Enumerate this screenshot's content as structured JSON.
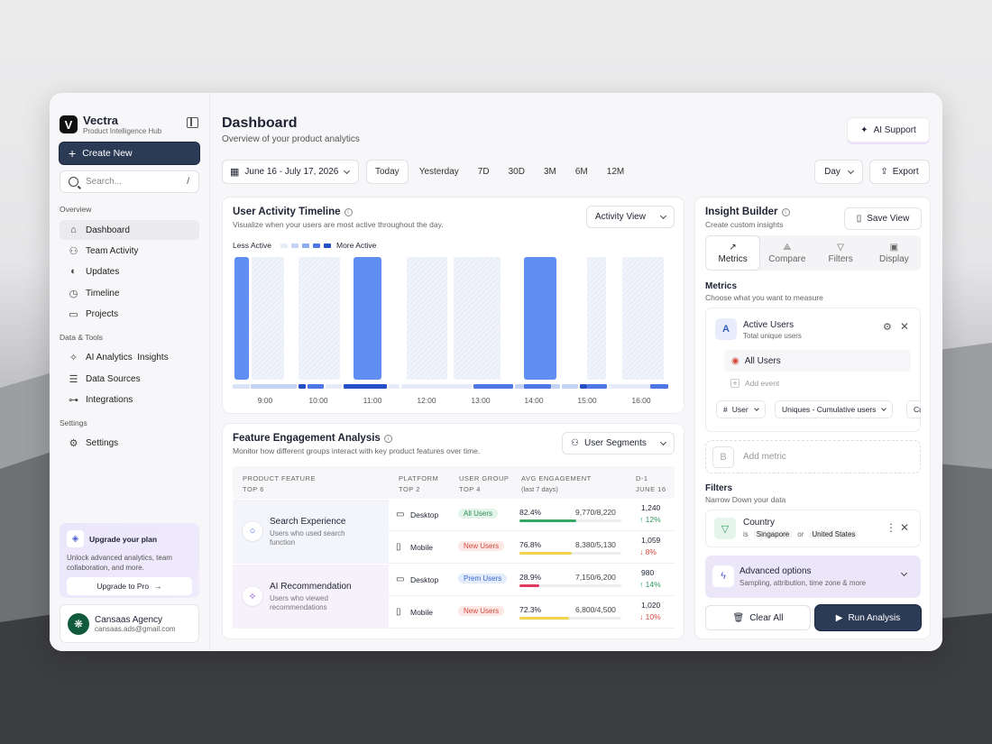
{
  "app": {
    "name": "Vectra",
    "subtitle": "Product Intelligence Hub"
  },
  "sidebar": {
    "create_label": "Create New",
    "search_placeholder": "Search...",
    "search_shortcut": "/",
    "section_overview": "Overview",
    "section_data": "Data & Tools",
    "section_settings": "Settings",
    "items": [
      {
        "label": "Dashboard"
      },
      {
        "label": "Team Activity"
      },
      {
        "label": "Updates"
      },
      {
        "label": "Timeline"
      },
      {
        "label": "Projects"
      },
      {
        "label": "AI Analytics  Insights"
      },
      {
        "label": "Data Sources"
      },
      {
        "label": "Integrations"
      },
      {
        "label": "Settings"
      }
    ],
    "upgrade": {
      "title": "Upgrade your plan",
      "desc": "Unlock advanced analytics, team collaboration, and more.",
      "button": "Upgrade to Pro"
    },
    "user": {
      "name": "Cansaas Agency",
      "email": "cansaas.ads@gmail.com",
      "initial": "❋"
    }
  },
  "header": {
    "title": "Dashboard",
    "subtitle": "Overview of your product analytics",
    "ai_support": "AI Support",
    "date_range": "June 16 - July 17, 2026",
    "ranges": [
      "Today",
      "Yesterday",
      "7D",
      "30D",
      "3M",
      "6M",
      "12M"
    ],
    "granularity": "Day",
    "export": "Export"
  },
  "activity": {
    "title": "User Activity Timeline",
    "subtitle": "Visualize when your users are most active throughout the day.",
    "view": "Activity View",
    "legend_less": "Less Active",
    "legend_more": "More Active",
    "legend_colors": [
      "#e6ebf8",
      "#c3d2f5",
      "#8fabf2",
      "#4f78e6",
      "#2650c8"
    ],
    "hours": [
      "9:00",
      "10:00",
      "11:00",
      "12:00",
      "13:00",
      "14:00",
      "15:00",
      "16:00"
    ],
    "bars": [
      {
        "level": "high"
      },
      {
        "level": "low"
      },
      {
        "level": "low"
      },
      {
        "level": "high"
      },
      {
        "level": "low"
      },
      {
        "level": "low"
      },
      {
        "level": "high"
      },
      {
        "level": "low"
      },
      {
        "level": "low"
      }
    ]
  },
  "engagement": {
    "title": "Feature Engagement Analysis",
    "subtitle": "Monitor how different groups interact with key product features over time.",
    "segments": "User Segments",
    "headers": {
      "feature": "PRODUCT FEATURE",
      "feature_sub": "TOP 6",
      "platform": "PLATFORM",
      "platform_sub": "TOP 2",
      "group": "USER GROUP",
      "group_sub": "TOP 4",
      "engagement": "AVG ENGAGEMENT",
      "engagement_sub": "(last 7 days)",
      "delta": "D-1",
      "delta_sub": "JUNE 16"
    },
    "features": [
      {
        "name": "Search Experience",
        "desc": "Users who used search function"
      },
      {
        "name": "AI Recommendation",
        "desc": "Users who viewed recommendations"
      }
    ],
    "rows": [
      {
        "platform": "Desktop",
        "group": "All Users",
        "pct": "82.4%",
        "ratio": "9,770/8,220",
        "fill": 0.824,
        "value": "1,240",
        "change": "↑ 12%",
        "up": true,
        "bar_color": "#3aa666",
        "group_bg": "#e3f4ea",
        "group_fg": "#2f8a55"
      },
      {
        "platform": "Mobile",
        "group": "New Users",
        "pct": "76.8%",
        "ratio": "8,380/5,130",
        "fill": 0.768,
        "value": "1,059",
        "change": "↓ 8%",
        "up": false,
        "bar_color": "#f0d24c",
        "group_bg": "#fde8e6",
        "group_fg": "#d5483c"
      },
      {
        "platform": "Desktop",
        "group": "Prem Users",
        "pct": "28.9%",
        "ratio": "7,150/6,200",
        "fill": 0.289,
        "value": "980",
        "change": "↑ 14%",
        "up": true,
        "bar_color": "#e03b5f",
        "group_bg": "#e3ecfb",
        "group_fg": "#3d67d2"
      },
      {
        "platform": "Mobile",
        "group": "New Users",
        "pct": "72.3%",
        "ratio": "6,800/4,500",
        "fill": 0.723,
        "value": "1,020",
        "change": "↓ 10%",
        "up": false,
        "bar_color": "#f0d24c",
        "group_bg": "#fde8e6",
        "group_fg": "#d5483c"
      }
    ]
  },
  "insight": {
    "title": "Insight Builder",
    "subtitle": "Create custom insights",
    "save": "Save View",
    "tabs": [
      "Metrics",
      "Compare",
      "Filters",
      "Display"
    ],
    "metrics_title": "Metrics",
    "metrics_sub": "Choose what you want to measure",
    "metric": {
      "badge": "A",
      "name": "Active Users",
      "desc": "Total unique users",
      "segment": "All Users",
      "add_event": "Add event",
      "chip_user": "User",
      "chip_calc": "Uniques - Cumulative users",
      "chip_more": "Cu"
    },
    "add_metric_badge": "B",
    "add_metric": "Add metric",
    "filters_title": "Filters",
    "filters_sub": "Narrow Down your data",
    "filter": {
      "name": "Country",
      "is": "is",
      "v1": "Singapore",
      "or": "or",
      "v2": "United States"
    },
    "advanced": {
      "title": "Advanced options",
      "desc": "Sampling, attribution, time zone & more"
    },
    "clear": "Clear All",
    "run": "Run Analysis"
  }
}
